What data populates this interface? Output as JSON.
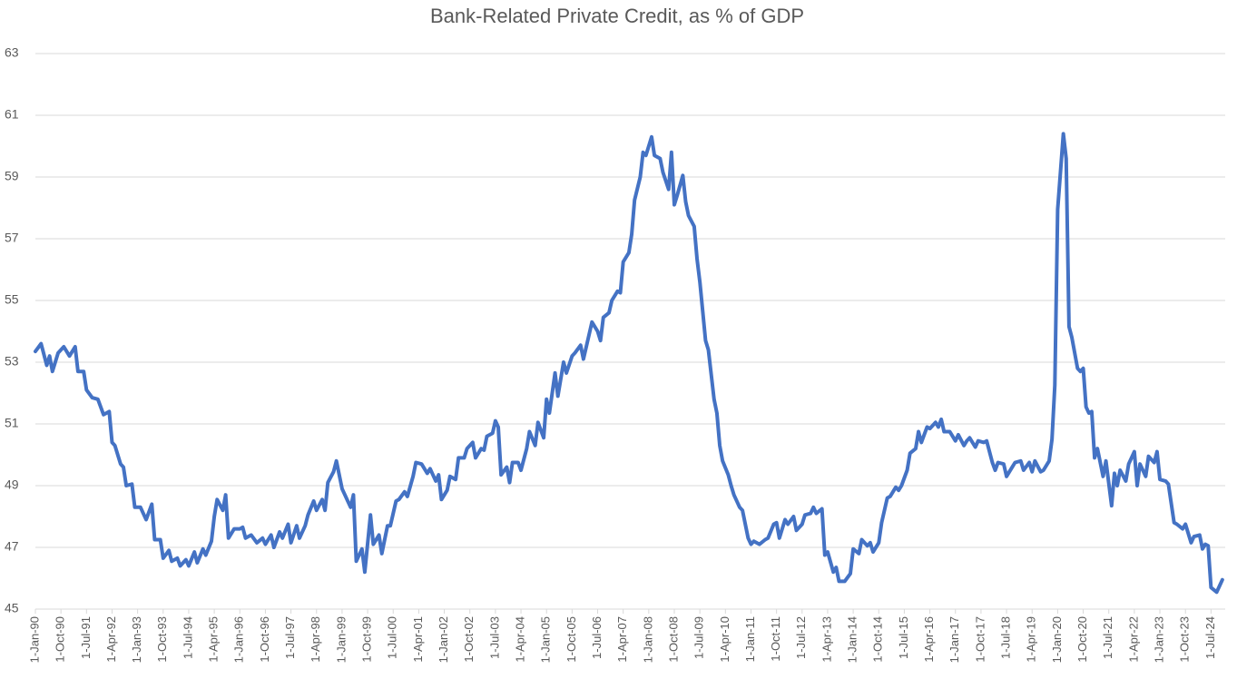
{
  "chart_data": {
    "type": "line",
    "title": "Bank-Related Private Credit, as % of GDP",
    "color": "#4472c4",
    "grid": true,
    "ylim": [
      45,
      63
    ],
    "yticks": [
      45,
      47,
      49,
      51,
      53,
      55,
      57,
      59,
      61,
      63
    ],
    "xlim": [
      "1990-01-01",
      "2024-12-01"
    ],
    "xticks": [
      {
        "value": "1990-01-01",
        "label": "1-Jan-90"
      },
      {
        "value": "1990-10-01",
        "label": "1-Oct-90"
      },
      {
        "value": "1991-07-01",
        "label": "1-Jul-91"
      },
      {
        "value": "1992-04-01",
        "label": "1-Apr-92"
      },
      {
        "value": "1993-01-01",
        "label": "1-Jan-93"
      },
      {
        "value": "1993-10-01",
        "label": "1-Oct-93"
      },
      {
        "value": "1994-07-01",
        "label": "1-Jul-94"
      },
      {
        "value": "1995-04-01",
        "label": "1-Apr-95"
      },
      {
        "value": "1996-01-01",
        "label": "1-Jan-96"
      },
      {
        "value": "1996-10-01",
        "label": "1-Oct-96"
      },
      {
        "value": "1997-07-01",
        "label": "1-Jul-97"
      },
      {
        "value": "1998-04-01",
        "label": "1-Apr-98"
      },
      {
        "value": "1999-01-01",
        "label": "1-Jan-99"
      },
      {
        "value": "1999-10-01",
        "label": "1-Oct-99"
      },
      {
        "value": "2000-07-01",
        "label": "1-Jul-00"
      },
      {
        "value": "2001-04-01",
        "label": "1-Apr-01"
      },
      {
        "value": "2002-01-01",
        "label": "1-Jan-02"
      },
      {
        "value": "2002-10-01",
        "label": "1-Oct-02"
      },
      {
        "value": "2003-07-01",
        "label": "1-Jul-03"
      },
      {
        "value": "2004-04-01",
        "label": "1-Apr-04"
      },
      {
        "value": "2005-01-01",
        "label": "1-Jan-05"
      },
      {
        "value": "2005-10-01",
        "label": "1-Oct-05"
      },
      {
        "value": "2006-07-01",
        "label": "1-Jul-06"
      },
      {
        "value": "2007-04-01",
        "label": "1-Apr-07"
      },
      {
        "value": "2008-01-01",
        "label": "1-Jan-08"
      },
      {
        "value": "2008-10-01",
        "label": "1-Oct-08"
      },
      {
        "value": "2009-07-01",
        "label": "1-Jul-09"
      },
      {
        "value": "2010-04-01",
        "label": "1-Apr-10"
      },
      {
        "value": "2011-01-01",
        "label": "1-Jan-11"
      },
      {
        "value": "2011-10-01",
        "label": "1-Oct-11"
      },
      {
        "value": "2012-07-01",
        "label": "1-Jul-12"
      },
      {
        "value": "2013-04-01",
        "label": "1-Apr-13"
      },
      {
        "value": "2014-01-01",
        "label": "1-Jan-14"
      },
      {
        "value": "2014-10-01",
        "label": "1-Oct-14"
      },
      {
        "value": "2015-07-01",
        "label": "1-Jul-15"
      },
      {
        "value": "2016-04-01",
        "label": "1-Apr-16"
      },
      {
        "value": "2017-01-01",
        "label": "1-Jan-17"
      },
      {
        "value": "2017-10-01",
        "label": "1-Oct-17"
      },
      {
        "value": "2018-07-01",
        "label": "1-Jul-18"
      },
      {
        "value": "2019-04-01",
        "label": "1-Apr-19"
      },
      {
        "value": "2020-01-01",
        "label": "1-Jan-20"
      },
      {
        "value": "2020-10-01",
        "label": "1-Oct-20"
      },
      {
        "value": "2021-07-01",
        "label": "1-Jul-21"
      },
      {
        "value": "2022-04-01",
        "label": "1-Apr-22"
      },
      {
        "value": "2023-01-01",
        "label": "1-Jan-23"
      },
      {
        "value": "2023-10-01",
        "label": "1-Oct-23"
      },
      {
        "value": "2024-07-01",
        "label": "1-Jul-24"
      }
    ],
    "x": [
      "1990-01-01",
      "1990-03-01",
      "1990-05-01",
      "1990-06-01",
      "1990-07-01",
      "1990-09-01",
      "1990-11-01",
      "1991-01-01",
      "1991-03-01",
      "1991-04-01",
      "1991-06-01",
      "1991-07-01",
      "1991-09-01",
      "1991-11-01",
      "1992-01-01",
      "1992-03-01",
      "1992-04-01",
      "1992-05-01",
      "1992-07-01",
      "1992-08-01",
      "1992-09-01",
      "1992-11-01",
      "1992-12-01",
      "1993-02-01",
      "1993-04-01",
      "1993-06-01",
      "1993-07-01",
      "1993-09-01",
      "1993-10-01",
      "1993-12-01",
      "1994-01-01",
      "1994-03-01",
      "1994-04-01",
      "1994-06-01",
      "1994-07-01",
      "1994-09-01",
      "1994-10-01",
      "1994-12-01",
      "1995-01-01",
      "1995-03-01",
      "1995-04-01",
      "1995-05-01",
      "1995-07-01",
      "1995-08-01",
      "1995-09-01",
      "1995-11-01",
      "1996-01-01",
      "1996-02-01",
      "1996-03-01",
      "1996-05-01",
      "1996-07-01",
      "1996-09-01",
      "1996-10-01",
      "1996-12-01",
      "1997-01-01",
      "1997-03-01",
      "1997-04-01",
      "1997-06-01",
      "1997-07-01",
      "1997-09-01",
      "1997-10-01",
      "1997-12-01",
      "1998-01-01",
      "1998-03-01",
      "1998-04-01",
      "1998-06-01",
      "1998-07-01",
      "1998-08-01",
      "1998-10-01",
      "1998-11-01",
      "1999-01-01",
      "1999-02-01",
      "1999-04-01",
      "1999-05-01",
      "1999-06-01",
      "1999-08-01",
      "1999-09-01",
      "1999-11-01",
      "1999-12-01",
      "2000-02-01",
      "2000-03-01",
      "2000-05-01",
      "2000-06-01",
      "2000-08-01",
      "2000-09-01",
      "2000-11-01",
      "2000-12-01",
      "2001-02-01",
      "2001-03-01",
      "2001-05-01",
      "2001-07-01",
      "2001-08-01",
      "2001-10-01",
      "2001-11-01",
      "2001-12-01",
      "2002-02-01",
      "2002-03-01",
      "2002-05-01",
      "2002-06-01",
      "2002-08-01",
      "2002-09-01",
      "2002-11-01",
      "2002-12-01",
      "2003-02-01",
      "2003-03-01",
      "2003-04-01",
      "2003-06-01",
      "2003-07-01",
      "2003-08-01",
      "2003-09-01",
      "2003-11-01",
      "2003-12-01",
      "2004-01-01",
      "2004-03-01",
      "2004-04-01",
      "2004-06-01",
      "2004-07-01",
      "2004-09-01",
      "2004-10-01",
      "2004-12-01",
      "2005-01-01",
      "2005-02-01",
      "2005-04-01",
      "2005-05-01",
      "2005-07-01",
      "2005-08-01",
      "2005-10-01",
      "2005-11-01",
      "2006-01-01",
      "2006-02-01",
      "2006-04-01",
      "2006-05-01",
      "2006-07-01",
      "2006-08-01",
      "2006-09-01",
      "2006-11-01",
      "2006-12-01",
      "2007-02-01",
      "2007-03-01",
      "2007-04-01",
      "2007-06-01",
      "2007-07-01",
      "2007-08-01",
      "2007-10-01",
      "2007-11-01",
      "2007-12-01",
      "2008-02-01",
      "2008-03-01",
      "2008-05-01",
      "2008-06-01",
      "2008-08-01",
      "2008-09-01",
      "2008-10-01",
      "2008-11-01",
      "2009-01-01",
      "2009-02-01",
      "2009-03-01",
      "2009-05-01",
      "2009-06-01",
      "2009-07-01",
      "2009-09-01",
      "2009-10-01",
      "2009-12-01",
      "2010-01-01",
      "2010-02-01",
      "2010-03-01",
      "2010-05-01",
      "2010-06-01",
      "2010-07-01",
      "2010-09-01",
      "2010-10-01",
      "2010-12-01",
      "2011-01-01",
      "2011-02-01",
      "2011-04-01",
      "2011-06-01",
      "2011-07-01",
      "2011-09-01",
      "2011-10-01",
      "2011-11-01",
      "2012-01-01",
      "2012-02-01",
      "2012-04-01",
      "2012-05-01",
      "2012-07-01",
      "2012-08-01",
      "2012-10-01",
      "2012-11-01",
      "2012-12-01",
      "2013-02-01",
      "2013-03-01",
      "2013-04-01",
      "2013-06-01",
      "2013-07-01",
      "2013-08-01",
      "2013-10-01",
      "2013-12-01",
      "2014-01-01",
      "2014-03-01",
      "2014-04-01",
      "2014-06-01",
      "2014-07-01",
      "2014-08-01",
      "2014-10-01",
      "2014-11-01",
      "2015-01-01",
      "2015-02-01",
      "2015-04-01",
      "2015-05-01",
      "2015-06-01",
      "2015-08-01",
      "2015-09-01",
      "2015-11-01",
      "2015-12-01",
      "2016-01-01",
      "2016-03-01",
      "2016-04-01",
      "2016-06-01",
      "2016-07-01",
      "2016-08-01",
      "2016-09-01",
      "2016-11-01",
      "2017-01-01",
      "2017-02-01",
      "2017-04-01",
      "2017-05-01",
      "2017-06-01",
      "2017-08-01",
      "2017-09-01",
      "2017-11-01",
      "2017-12-01",
      "2018-02-01",
      "2018-03-01",
      "2018-04-01",
      "2018-06-01",
      "2018-07-01",
      "2018-09-01",
      "2018-10-01",
      "2018-12-01",
      "2019-01-01",
      "2019-03-01",
      "2019-04-01",
      "2019-05-01",
      "2019-07-01",
      "2019-08-01",
      "2019-10-01",
      "2019-11-01",
      "2019-12-01",
      "2020-01-01",
      "2020-03-01",
      "2020-04-01",
      "2020-05-01",
      "2020-06-01",
      "2020-08-01",
      "2020-09-01",
      "2020-10-01",
      "2020-11-01",
      "2020-12-01",
      "2021-01-01",
      "2021-02-01",
      "2021-03-01",
      "2021-05-01",
      "2021-06-01",
      "2021-08-01",
      "2021-09-01",
      "2021-10-01",
      "2021-11-01",
      "2022-01-01",
      "2022-02-01",
      "2022-04-01",
      "2022-05-01",
      "2022-06-01",
      "2022-08-01",
      "2022-09-01",
      "2022-11-01",
      "2022-12-01",
      "2023-01-01",
      "2023-03-01",
      "2023-04-01",
      "2023-06-01",
      "2023-07-01",
      "2023-09-01",
      "2023-10-01",
      "2023-12-01",
      "2024-01-01",
      "2024-03-01",
      "2024-04-01",
      "2024-05-01",
      "2024-06-01",
      "2024-07-01",
      "2024-09-01",
      "2024-10-01",
      "2024-11-01"
    ],
    "values": [
      53.35,
      53.6,
      52.9,
      53.2,
      52.7,
      53.3,
      53.5,
      53.2,
      53.5,
      52.7,
      52.7,
      52.1,
      51.85,
      51.8,
      51.3,
      51.4,
      50.4,
      50.3,
      49.7,
      49.6,
      49.0,
      49.05,
      48.3,
      48.3,
      47.9,
      48.4,
      47.25,
      47.25,
      46.65,
      46.9,
      46.55,
      46.65,
      46.4,
      46.6,
      46.4,
      46.85,
      46.5,
      46.95,
      46.75,
      47.2,
      48.0,
      48.55,
      48.2,
      48.7,
      47.3,
      47.6,
      47.6,
      47.65,
      47.3,
      47.4,
      47.15,
      47.3,
      47.1,
      47.4,
      47.0,
      47.5,
      47.3,
      47.75,
      47.15,
      47.7,
      47.3,
      47.7,
      48.05,
      48.5,
      48.2,
      48.55,
      48.2,
      49.1,
      49.45,
      49.8,
      48.9,
      48.7,
      48.3,
      48.7,
      46.55,
      46.95,
      46.2,
      48.05,
      47.1,
      47.4,
      46.8,
      47.7,
      47.7,
      48.5,
      48.55,
      48.8,
      48.65,
      49.3,
      49.75,
      49.7,
      49.4,
      49.55,
      49.15,
      49.35,
      48.55,
      48.85,
      49.3,
      49.2,
      49.9,
      49.9,
      50.2,
      50.4,
      49.9,
      50.2,
      50.15,
      50.6,
      50.7,
      51.1,
      50.9,
      49.35,
      49.6,
      49.1,
      49.75,
      49.75,
      49.5,
      50.2,
      50.75,
      50.3,
      51.05,
      50.55,
      51.8,
      51.35,
      52.65,
      51.9,
      53.0,
      52.65,
      53.2,
      53.3,
      53.55,
      53.1,
      53.9,
      54.3,
      54.0,
      53.7,
      54.45,
      54.6,
      55.0,
      55.3,
      55.25,
      56.25,
      56.55,
      57.15,
      58.25,
      59.0,
      59.8,
      59.7,
      60.3,
      59.7,
      59.6,
      59.15,
      58.6,
      59.8,
      58.1,
      58.4,
      59.05,
      58.2,
      57.75,
      57.4,
      56.35,
      55.6,
      53.7,
      53.4,
      51.8,
      51.35,
      50.3,
      49.8,
      49.35,
      49.0,
      48.7,
      48.3,
      48.2,
      47.3,
      47.1,
      47.2,
      47.1,
      47.25,
      47.3,
      47.75,
      47.8,
      47.3,
      47.9,
      47.75,
      48.0,
      47.55,
      47.75,
      48.05,
      48.1,
      48.3,
      48.1,
      48.25,
      46.75,
      46.85,
      46.2,
      46.35,
      45.9,
      45.9,
      46.15,
      46.95,
      46.8,
      47.25,
      47.05,
      47.15,
      46.85,
      47.15,
      47.8,
      48.6,
      48.65,
      48.95,
      48.85,
      49.0,
      49.5,
      50.05,
      50.2,
      50.75,
      50.4,
      50.9,
      50.85,
      51.05,
      50.9,
      51.15,
      50.75,
      50.75,
      50.45,
      50.65,
      50.3,
      50.45,
      50.55,
      50.25,
      50.45,
      50.4,
      50.45,
      49.75,
      49.5,
      49.75,
      49.7,
      49.3,
      49.6,
      49.75,
      49.8,
      49.5,
      49.75,
      49.45,
      49.8,
      49.45,
      49.5,
      49.8,
      50.5,
      52.25,
      57.95,
      60.4,
      59.6,
      54.15,
      53.8,
      52.8,
      52.7,
      52.8,
      51.55,
      51.35,
      51.4,
      49.9,
      50.2,
      49.3,
      49.8,
      48.35,
      49.4,
      49.0,
      49.5,
      49.15,
      49.7,
      50.1,
      49.0,
      49.7,
      49.3,
      49.95,
      49.75,
      50.1,
      49.2,
      49.15,
      49.05,
      47.8,
      47.75,
      47.6,
      47.75,
      47.15,
      47.35,
      47.4,
      46.95,
      47.1,
      47.05,
      45.7,
      45.55,
      45.75,
      45.95
    ]
  }
}
